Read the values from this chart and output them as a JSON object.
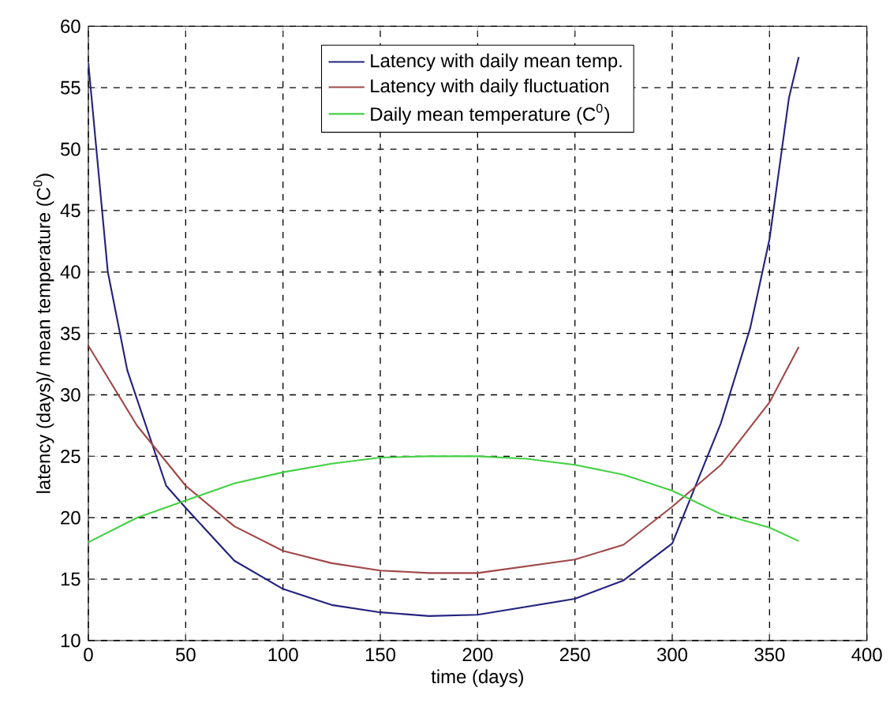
{
  "chart_data": {
    "type": "line",
    "xlabel": "time (days)",
    "ylabel": "latency (days)/ mean temperature (C$^{0}$)",
    "xlim": [
      0,
      400
    ],
    "ylim": [
      10,
      60
    ],
    "xticks": [
      0,
      50,
      100,
      150,
      200,
      250,
      300,
      350,
      400
    ],
    "yticks": [
      10,
      15,
      20,
      25,
      30,
      35,
      40,
      45,
      50,
      55,
      60
    ],
    "grid": true,
    "legend": "top",
    "line_style": "solid",
    "marker": "none",
    "series": [
      {
        "name": "Latency with daily mean temp.",
        "color": "#23237f",
        "x": [
          0,
          10,
          20,
          30,
          40,
          50,
          75,
          100,
          125,
          150,
          175,
          200,
          250,
          275,
          300,
          325,
          340,
          350,
          360,
          365
        ],
        "values": [
          57,
          40,
          32,
          27.3,
          22.6,
          20.8,
          16.5,
          14.2,
          12.9,
          12.3,
          12,
          12.1,
          13.4,
          14.9,
          17.9,
          27.7,
          35.4,
          42.7,
          54.2,
          57.5
        ]
      },
      {
        "name": "Latency with daily fluctuation",
        "color": "#a04848",
        "x": [
          0,
          25,
          50,
          75,
          100,
          125,
          150,
          175,
          200,
          250,
          275,
          300,
          325,
          350,
          365
        ],
        "values": [
          34,
          27.5,
          22.6,
          19.3,
          17.3,
          16.3,
          15.7,
          15.5,
          15.5,
          16.6,
          17.8,
          20.9,
          24.3,
          29.4,
          33.9
        ]
      },
      {
        "name": "Daily mean temperature (C$^{0}$)",
        "color": "#44d044",
        "x": [
          0,
          25,
          50,
          75,
          100,
          125,
          150,
          175,
          200,
          225,
          250,
          275,
          300,
          325,
          350,
          365
        ],
        "values": [
          18,
          20,
          21.4,
          22.8,
          23.7,
          24.4,
          24.9,
          25,
          25,
          24.8,
          24.3,
          23.5,
          22.2,
          20.3,
          19.2,
          18.1
        ]
      }
    ]
  }
}
